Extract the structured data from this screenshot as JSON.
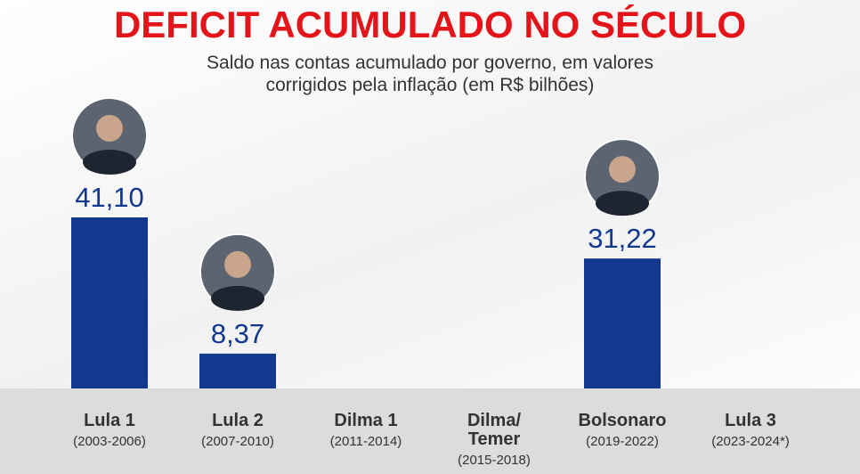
{
  "chart_data": {
    "type": "bar",
    "title": "DEFICIT ACUMULADO NO SÉCULO",
    "subtitle": "Saldo nas contas acumulado por governo, em valores\ncorrigidos pela inflação (em R$ bilhões)",
    "categories": [
      "Lula 1",
      "Lula 2",
      "Dilma 1",
      "Dilma/\nTemer",
      "Bolsonaro",
      "Lula 3"
    ],
    "periods": [
      "(2003-2006)",
      "(2007-2010)",
      "(2011-2014)",
      "(2015-2018)",
      "(2019-2022)",
      "(2023-2024*)"
    ],
    "values": [
      41.1,
      8.37,
      null,
      null,
      31.22,
      null
    ],
    "value_labels": [
      "41,10",
      "8,37",
      null,
      null,
      "31,22",
      null
    ],
    "color": "#13398f"
  }
}
